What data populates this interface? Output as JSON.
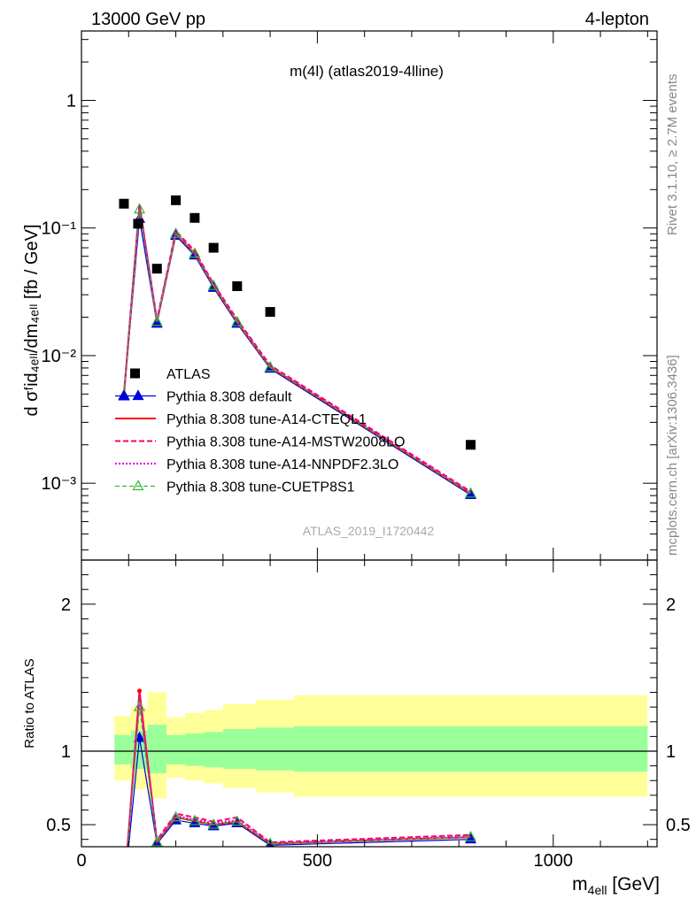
{
  "header": {
    "left": "13000 GeV pp",
    "right": "4-lepton"
  },
  "side_text": {
    "rivet": "Rivet 3.1.10, ≥ 2.7M events",
    "mcplots": "mcplots.cern.ch [arXiv:1306.3436]"
  },
  "main_title": "m(4l) (atlas2019-4lline)",
  "analysis_id": "ATLAS_2019_I1720442",
  "labels": {
    "ylabel_main": "d σᶠid₄ₑₗₗ/dm₄ₑₗₗ [fb / GeV]",
    "ylabel_ratio": "Ratio to ATLAS",
    "xlabel": "m",
    "xlabel_sub": "4ell",
    "xlabel_unit": " [GeV]"
  },
  "colors": {
    "data": "#000000",
    "default": "#0000dd",
    "a14_cteql1": "#ff0000",
    "a14_mstw": "#ff0066",
    "a14_nnpdf": "#dd00dd",
    "cuetp8s1": "#33bb33",
    "band_inner": "#99ff99",
    "band_outer": "#ffff99"
  },
  "legend": {
    "atlas": "ATLAS",
    "default": "Pythia 8.308 default",
    "a14_cteql1": "Pythia 8.308 tune-A14-CTEQL1",
    "a14_mstw": "Pythia 8.308 tune-A14-MSTW2008LO",
    "a14_nnpdf": "Pythia 8.308 tune-A14-NNPDF2.3LO",
    "cuetp8s1": "Pythia 8.308 tune-CUETP8S1"
  },
  "chart_data": [
    {
      "type": "scatter",
      "panel": "main",
      "y_scale": "log",
      "xlim": [
        0,
        1220
      ],
      "ylim": [
        0.00025,
        3.5
      ],
      "x_ticks": [
        0,
        500,
        1000
      ],
      "y_tick_labels": [
        "1",
        "10⁻¹",
        "10⁻²",
        "10⁻³"
      ],
      "y_tick_values": [
        1,
        0.1,
        0.01,
        0.001
      ],
      "data_points": {
        "name": "ATLAS",
        "x": [
          90,
          120,
          160,
          200,
          240,
          280,
          330,
          400,
          825
        ],
        "y": [
          0.155,
          0.108,
          0.048,
          0.165,
          0.12,
          0.07,
          0.035,
          0.022,
          0.002
        ]
      },
      "x": [
        90,
        123,
        160,
        200,
        240,
        280,
        330,
        400,
        825
      ],
      "series": [
        {
          "name": "Pythia 8.308 default",
          "values": [
            0.0048,
            0.118,
            0.0178,
            0.087,
            0.061,
            0.034,
            0.0178,
            0.0079,
            0.00081
          ]
        },
        {
          "name": "Pythia 8.308 tune-A14-CTEQL1",
          "values": [
            0.0049,
            0.152,
            0.0184,
            0.09,
            0.063,
            0.0352,
            0.0183,
            0.0081,
            0.00083
          ]
        },
        {
          "name": "Pythia 8.308 tune-A14-MSTW2008LO",
          "values": [
            0.005,
            0.15,
            0.019,
            0.095,
            0.066,
            0.0365,
            0.0192,
            0.0084,
            0.00086
          ]
        },
        {
          "name": "Pythia 8.308 tune-A14-NNPDF2.3LO",
          "values": [
            0.0049,
            0.148,
            0.0185,
            0.092,
            0.064,
            0.0358,
            0.0186,
            0.0082,
            0.00084
          ]
        },
        {
          "name": "Pythia 8.308 tune-CUETP8S1",
          "values": [
            0.0049,
            0.14,
            0.0184,
            0.09,
            0.063,
            0.0352,
            0.0183,
            0.0081,
            0.00083
          ]
        }
      ]
    },
    {
      "type": "line",
      "panel": "ratio",
      "ylabel": "Ratio to ATLAS",
      "xlim": [
        0,
        1220
      ],
      "ylim": [
        0.35,
        2.3
      ],
      "x_ticks": [
        0,
        500,
        1000
      ],
      "y_ticks": [
        0.5,
        1,
        2
      ],
      "x": [
        90,
        123,
        160,
        200,
        240,
        280,
        330,
        400,
        825
      ],
      "band_bins": [
        {
          "x0": 70,
          "x1": 105,
          "inner": [
            0.91,
            1.11
          ],
          "outer": [
            0.8,
            1.24
          ]
        },
        {
          "x0": 105,
          "x1": 140,
          "inner": [
            0.88,
            1.14
          ],
          "outer": [
            0.74,
            1.3
          ]
        },
        {
          "x0": 140,
          "x1": 180,
          "inner": [
            0.85,
            1.18
          ],
          "outer": [
            0.68,
            1.4
          ]
        },
        {
          "x0": 180,
          "x1": 220,
          "inner": [
            0.91,
            1.11
          ],
          "outer": [
            0.82,
            1.23
          ]
        },
        {
          "x0": 220,
          "x1": 260,
          "inner": [
            0.9,
            1.12
          ],
          "outer": [
            0.8,
            1.26
          ]
        },
        {
          "x0": 260,
          "x1": 300,
          "inner": [
            0.89,
            1.13
          ],
          "outer": [
            0.78,
            1.28
          ]
        },
        {
          "x0": 300,
          "x1": 370,
          "inner": [
            0.88,
            1.15
          ],
          "outer": [
            0.75,
            1.32
          ]
        },
        {
          "x0": 370,
          "x1": 450,
          "inner": [
            0.87,
            1.16
          ],
          "outer": [
            0.72,
            1.35
          ]
        },
        {
          "x0": 450,
          "x1": 1200,
          "inner": [
            0.86,
            1.17
          ],
          "outer": [
            0.69,
            1.38
          ]
        }
      ],
      "series": [
        {
          "name": "Pythia 8.308 default",
          "values": [
            0.031,
            1.09,
            0.37,
            0.53,
            0.51,
            0.49,
            0.51,
            0.36,
            0.4
          ]
        },
        {
          "name": "Pythia 8.308 tune-A14-CTEQL1",
          "values": [
            0.032,
            1.41,
            0.38,
            0.55,
            0.525,
            0.5,
            0.52,
            0.37,
            0.415
          ]
        },
        {
          "name": "Pythia 8.308 tune-A14-MSTW2008LO",
          "values": [
            0.032,
            1.39,
            0.395,
            0.575,
            0.55,
            0.52,
            0.55,
            0.38,
            0.43
          ]
        },
        {
          "name": "Pythia 8.308 tune-A14-NNPDF2.3LO",
          "values": [
            0.032,
            1.37,
            0.385,
            0.56,
            0.535,
            0.51,
            0.53,
            0.375,
            0.42
          ]
        },
        {
          "name": "Pythia 8.308 tune-CUETP8S1",
          "values": [
            0.032,
            1.3,
            0.38,
            0.55,
            0.525,
            0.5,
            0.52,
            0.37,
            0.415
          ]
        }
      ]
    }
  ]
}
